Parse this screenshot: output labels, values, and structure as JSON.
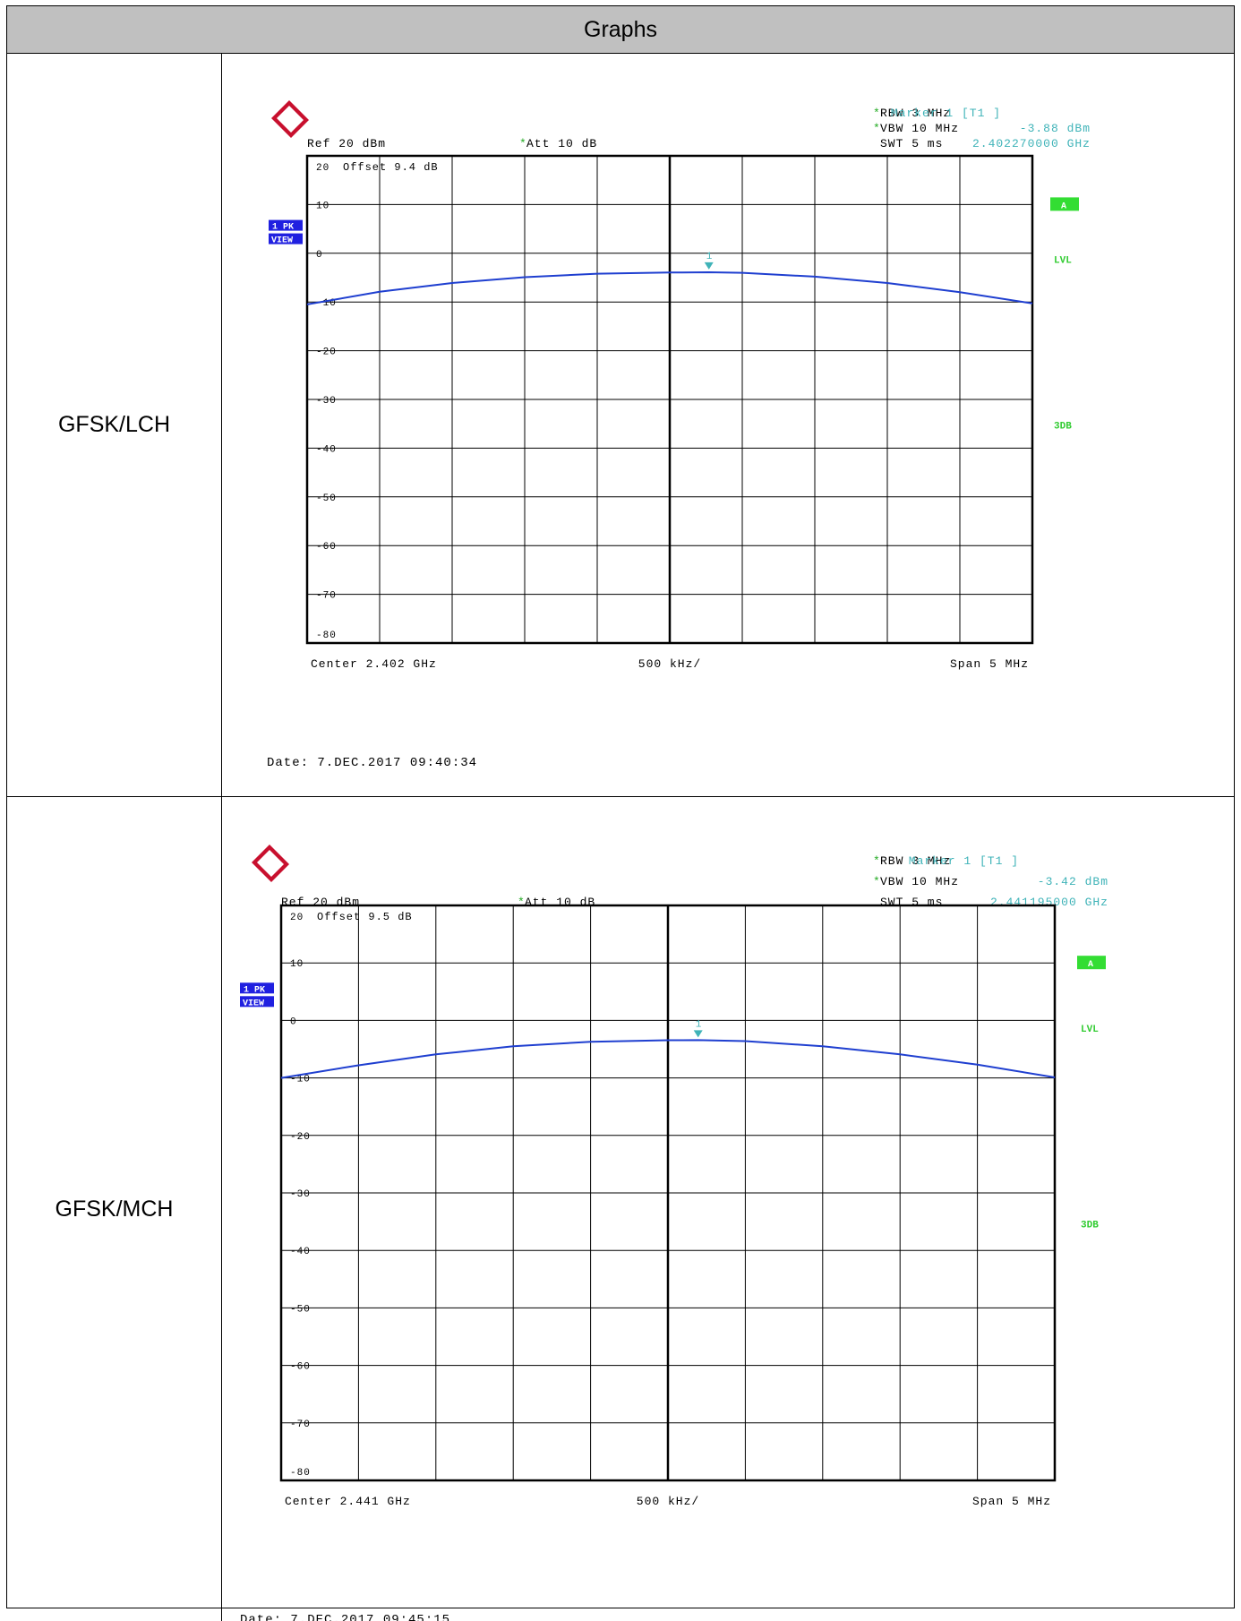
{
  "table": {
    "header": "Graphs",
    "rows": [
      {
        "label": "GFSK/LCH"
      },
      {
        "label": "GFSK/MCH"
      }
    ]
  },
  "chart_data": [
    {
      "type": "line",
      "instrument": {
        "ref": "Ref   20 dBm",
        "att": "Att    10 dB",
        "att_star": "*",
        "rbw": "RBW  3 MHz",
        "vbw": "VBW  10 MHz",
        "swt": "SWT  5 ms",
        "rbw_star": "*",
        "vbw_star": "*",
        "marker_title": "Marker 1 [T1 ]",
        "marker_level": "-3.88 dBm",
        "marker_freq": "2.402270000 GHz",
        "offset": "Offset    9.4  dB",
        "trace_mode": "1 PK",
        "trace_view": "VIEW",
        "badge_a": "A",
        "lvl": "LVL",
        "db3": "3DB",
        "marker_num": "1"
      },
      "center": "Center  2.402 GHz",
      "span_div": "500 kHz/",
      "span": "Span  5 MHz",
      "date": "Date: 7.DEC.2017  09:40:34",
      "y_tick_labels": [
        "20",
        "10",
        "0",
        "-10",
        "-20",
        "-30",
        "-40",
        "-50",
        "-60",
        "-70",
        "-80"
      ],
      "ylim": [
        -80,
        20
      ],
      "x_range_mhz": [
        -2.5,
        2.5
      ],
      "trace_color": "#1f3fd0",
      "marker": {
        "x_mhz": 0.27,
        "y_dbm": -3.88
      },
      "series": [
        {
          "x": [
            -2.5,
            -2.0,
            -1.5,
            -1.0,
            -0.5,
            0.0,
            0.27,
            0.5,
            1.0,
            1.5,
            2.0,
            2.5
          ],
          "values": [
            -10.5,
            -7.9,
            -6.1,
            -4.9,
            -4.2,
            -3.95,
            -3.9,
            -4.0,
            -4.8,
            -6.1,
            -8.0,
            -10.3
          ]
        }
      ]
    },
    {
      "type": "line",
      "instrument": {
        "ref": "Ref   20 dBm",
        "att": "Att    10 dB",
        "att_star": "*",
        "rbw": "RBW  3 MHz",
        "vbw": "VBW  10 MHz",
        "swt": "SWT  5 ms",
        "rbw_star": "*",
        "vbw_star": "*",
        "marker_title": "Marker 1 [T1 ]",
        "marker_level": "-3.42 dBm",
        "marker_freq": "2.441195000 GHz",
        "offset": "Offset    9.5  dB",
        "trace_mode": "1 PK",
        "trace_view": "VIEW",
        "badge_a": "A",
        "lvl": "LVL",
        "db3": "3DB",
        "marker_num": "1"
      },
      "center": "Center  2.441 GHz",
      "span_div": "500 kHz/",
      "span": "Span  5 MHz",
      "date": "Date: 7.DEC.2017  09:45:15",
      "y_tick_labels": [
        "20",
        "10",
        "0",
        "-10",
        "-20",
        "-30",
        "-40",
        "-50",
        "-60",
        "-70",
        "-80"
      ],
      "ylim": [
        -80,
        20
      ],
      "x_range_mhz": [
        -2.5,
        2.5
      ],
      "trace_color": "#1f3fd0",
      "marker": {
        "x_mhz": 0.195,
        "y_dbm": -3.42
      },
      "series": [
        {
          "x": [
            -2.5,
            -2.0,
            -1.5,
            -1.0,
            -0.5,
            0.0,
            0.195,
            0.5,
            1.0,
            1.5,
            2.0,
            2.5
          ],
          "values": [
            -10.0,
            -7.8,
            -5.9,
            -4.5,
            -3.7,
            -3.45,
            -3.42,
            -3.6,
            -4.5,
            -5.9,
            -7.7,
            -9.9
          ]
        }
      ]
    }
  ]
}
